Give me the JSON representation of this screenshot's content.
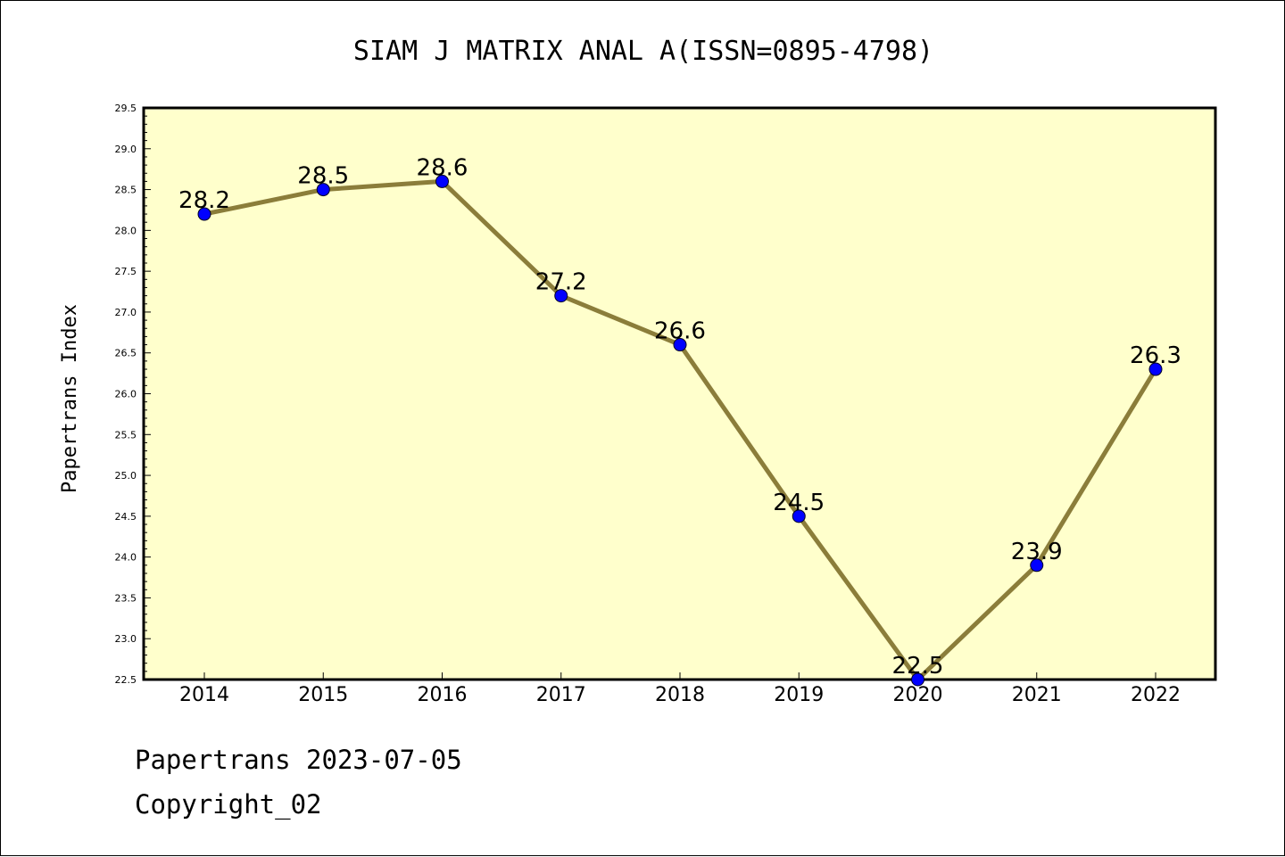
{
  "chart_data": {
    "type": "line",
    "title": "SIAM J MATRIX ANAL A(ISSN=0895-4798)",
    "ylabel": "Papertrans Index",
    "xlabel": "",
    "categories": [
      "2014",
      "2015",
      "2016",
      "2017",
      "2018",
      "2019",
      "2020",
      "2021",
      "2022"
    ],
    "values": [
      28.2,
      28.5,
      28.6,
      27.2,
      26.6,
      24.5,
      22.5,
      23.9,
      26.3
    ],
    "data_labels": [
      "28.2",
      "28.5",
      "28.6",
      "27.2",
      "26.6",
      "24.5",
      "22.5",
      "23.9",
      "26.3"
    ],
    "ylim": [
      22.5,
      29.5
    ],
    "yticks": [
      "22.5",
      "23.0",
      "23.5",
      "24.0",
      "24.5",
      "25.0",
      "25.5",
      "26.0",
      "26.5",
      "27.0",
      "27.5",
      "28.0",
      "28.5",
      "29.0",
      "29.5"
    ],
    "grid": false,
    "colors": {
      "plot_background": "#ffffcc",
      "line": "#8b7d3a",
      "marker": "#0000ff"
    }
  },
  "footer": {
    "line1": "Papertrans 2023-07-05",
    "line2": "Copyright_02"
  }
}
